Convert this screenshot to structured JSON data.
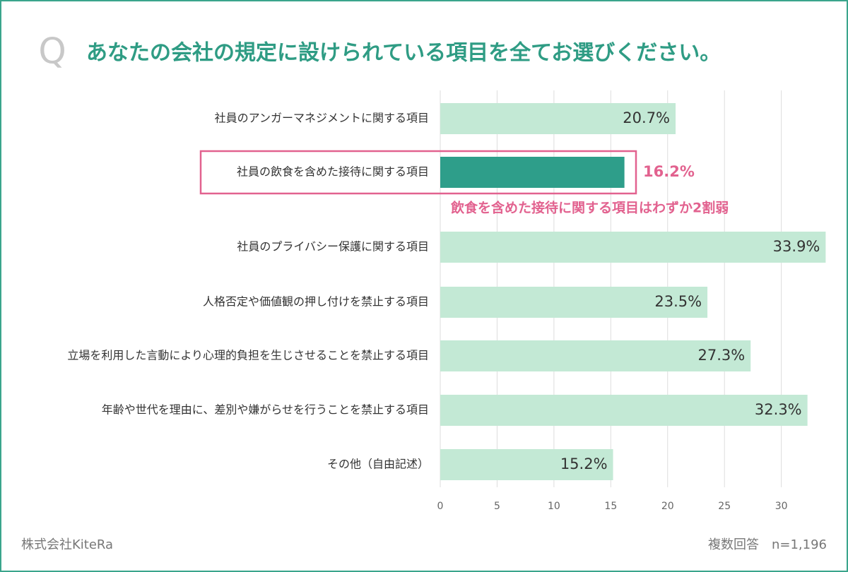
{
  "chart_data": {
    "type": "bar",
    "orientation": "horizontal",
    "title_prefix": "Q",
    "title": "あなたの会社の規定に設けられている項目を全てお選びください。",
    "categories": [
      "社員のアンガーマネジメントに関する項目",
      "社員の飲食を含めた接待に関する項目",
      "社員のプライバシー保護に関する項目",
      "人格否定や価値観の押し付けを禁止する項目",
      "立場を利用した言動により心理的負担を生じさせることを禁止する項目",
      "年齢や世代を理由に、差別や嫌がらせを行うことを禁止する項目",
      "その他（自由記述）"
    ],
    "values": [
      20.7,
      16.2,
      33.9,
      23.5,
      27.3,
      32.3,
      15.2
    ],
    "value_labels": [
      "20.7%",
      "16.2%",
      "33.9%",
      "23.5%",
      "27.3%",
      "32.3%",
      "15.2%"
    ],
    "color": "#c3e9d5",
    "colors": [
      "#c3e9d5",
      "#2e9e8a",
      "#c3e9d5",
      "#c3e9d5",
      "#c3e9d5",
      "#c3e9d5",
      "#c3e9d5"
    ],
    "highlight_color": "#e2628f",
    "annotation": "飲食を含めた接待に関する項目はわずか2割弱",
    "xlim": [
      0,
      34
    ],
    "xticks": [
      0,
      5,
      10,
      15,
      20,
      25,
      30
    ],
    "grid": true,
    "source": "株式会社KiteRa",
    "note": "複数回答　n=1,196"
  }
}
